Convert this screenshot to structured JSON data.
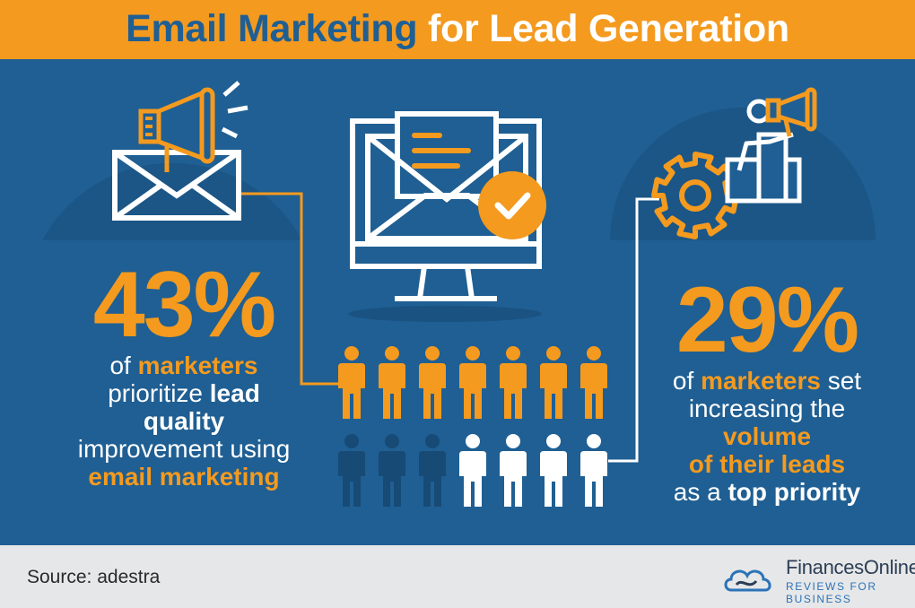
{
  "header": {
    "title_part1": "Email Marketing",
    "title_part2": "for Lead Generation"
  },
  "left_stat": {
    "value": "43%",
    "percent": 43,
    "line1_a": "of ",
    "line1_b": "marketers",
    "line2_a": "prioritize ",
    "line2_b": "lead",
    "line3": "quality",
    "line4": "improvement using",
    "line5": "email marketing"
  },
  "right_stat": {
    "value": "29%",
    "percent": 29,
    "line1_a": "of ",
    "line1_b": "marketers",
    "line1_c": " set",
    "line2": "increasing the",
    "line3": "volume",
    "line4": "of their leads",
    "line5_a": "as a ",
    "line5_b": "top priority"
  },
  "people_grid": {
    "top_row": {
      "count": 7,
      "color": "#f49a1f"
    },
    "bottom_row_dark": {
      "count": 3,
      "color": "#174a75"
    },
    "bottom_row_white": {
      "count": 4,
      "color": "#ffffff"
    }
  },
  "icons": [
    "megaphone-envelope-icon",
    "computer-email-check-icon",
    "gear-person-megaphone-icon",
    "financesonline-cloud-logo-icon"
  ],
  "colors": {
    "accent": "#f49a1f",
    "background": "#1f5f93",
    "footer": "#e6e7e8"
  },
  "footer": {
    "source": "Source: adestra",
    "brand_name": "FinancesOnline",
    "brand_tagline": "REVIEWS FOR BUSINESS"
  }
}
